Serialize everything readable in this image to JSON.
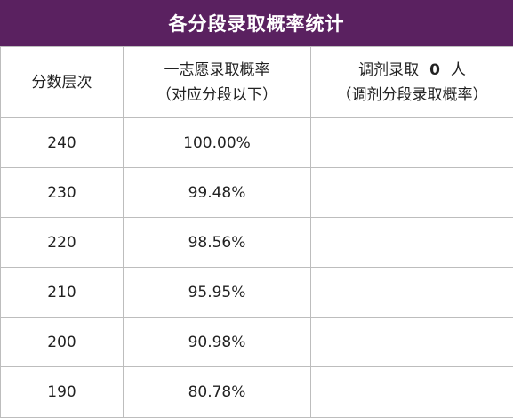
{
  "title": "各分段录取概率统计",
  "headers": {
    "col1": "分数层次",
    "col2_line1": "一志愿录取概率",
    "col2_line2": "（对应分段以下）",
    "col3_prefix": "调剂录取",
    "col3_number": "0",
    "col3_suffix": "人",
    "col3_line2": "（调剂分段录取概率）"
  },
  "rows": [
    {
      "score": "240",
      "first_choice_prob": "100.00%",
      "adjust_prob": ""
    },
    {
      "score": "230",
      "first_choice_prob": "99.48%",
      "adjust_prob": ""
    },
    {
      "score": "220",
      "first_choice_prob": "98.56%",
      "adjust_prob": ""
    },
    {
      "score": "210",
      "first_choice_prob": "95.95%",
      "adjust_prob": ""
    },
    {
      "score": "200",
      "first_choice_prob": "90.98%",
      "adjust_prob": ""
    },
    {
      "score": "190",
      "first_choice_prob": "80.78%",
      "adjust_prob": ""
    }
  ],
  "colors": {
    "title_bg": "#5a2160",
    "title_text": "#ffffff",
    "grid_line": "#bdbdbd"
  }
}
